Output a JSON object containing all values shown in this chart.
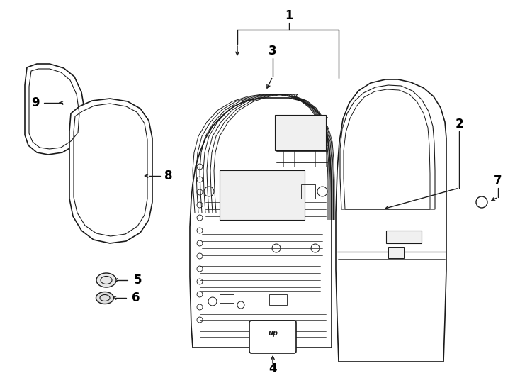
{
  "background_color": "#ffffff",
  "line_color": "#1a1a1a",
  "label_color": "#000000",
  "label_fontsize": 12,
  "figsize": [
    7.34,
    5.4
  ],
  "dpi": 100
}
